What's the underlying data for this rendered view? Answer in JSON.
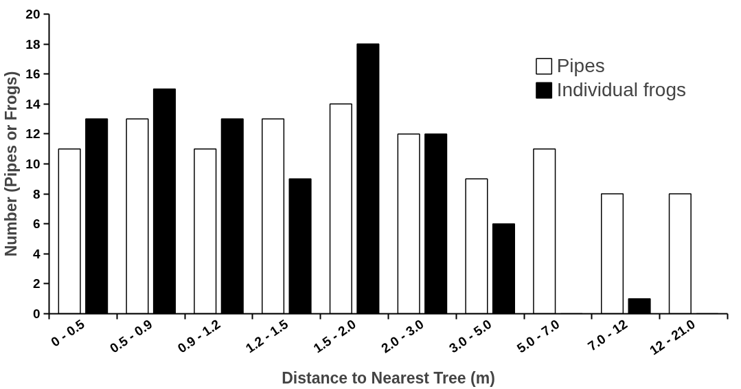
{
  "chart_data": {
    "type": "bar",
    "xlabel": "Distance to Nearest Tree (m)",
    "ylabel": "Number (Pipes or Frogs)",
    "categories": [
      "0 - 0.5",
      "0.5 - 0.9",
      "0.9 - 1.2",
      "1.2 - 1.5",
      "1.5 - 2.0",
      "2.0 - 3.0",
      "3.0 - 5.0",
      "5.0 - 7.0",
      "7.0 - 12",
      "12 - 21.0"
    ],
    "series": [
      {
        "name": "Pipes",
        "color": "#ffffff",
        "values": [
          11,
          13,
          11,
          13,
          14,
          12,
          9,
          11,
          8,
          8
        ]
      },
      {
        "name": "Individual frogs",
        "color": "#000000",
        "values": [
          13,
          15,
          13,
          9,
          18,
          12,
          6,
          0,
          1,
          0
        ]
      }
    ],
    "ylim": [
      0,
      20
    ],
    "yticks": [
      0,
      2,
      4,
      6,
      8,
      10,
      12,
      14,
      16,
      18,
      20
    ],
    "grid": false,
    "legend": "top right"
  }
}
